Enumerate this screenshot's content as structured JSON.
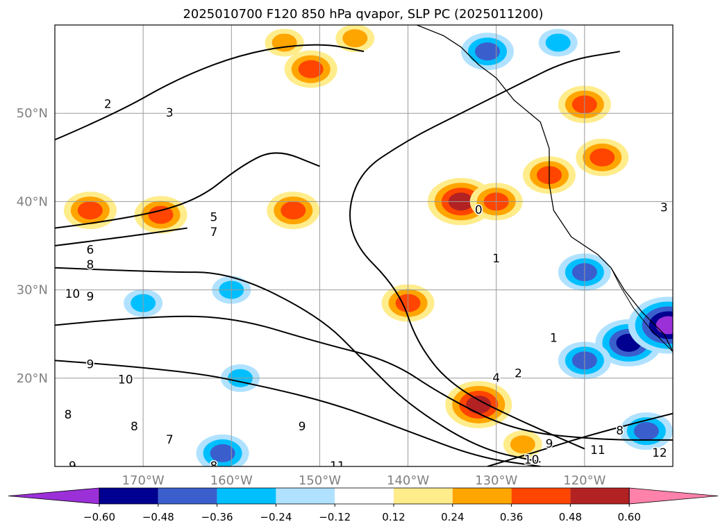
{
  "chart_data": {
    "type": "heatmap",
    "title": "2025010700 F120 850 hPa qvapor, SLP PC (2025011200)",
    "map": {
      "lon_range": [
        -180,
        -110
      ],
      "lat_range": [
        10,
        60
      ],
      "lon_ticks": [
        {
          "value": -170,
          "label": "170°W"
        },
        {
          "value": -160,
          "label": "160°W"
        },
        {
          "value": -150,
          "label": "150°W"
        },
        {
          "value": -140,
          "label": "140°W"
        },
        {
          "value": -130,
          "label": "130°W"
        },
        {
          "value": -120,
          "label": "120°W"
        }
      ],
      "lat_ticks": [
        {
          "value": 50,
          "label": "50°N"
        },
        {
          "value": 40,
          "label": "40°N"
        },
        {
          "value": 30,
          "label": "30°N"
        },
        {
          "value": 20,
          "label": "20°N"
        }
      ],
      "grid": true
    },
    "colorbar": {
      "levels": [
        -0.72,
        -0.6,
        -0.48,
        -0.36,
        -0.24,
        -0.12,
        0.12,
        0.24,
        0.36,
        0.48,
        0.6,
        0.72
      ],
      "tick_labels": [
        "−0.60",
        "−0.48",
        "−0.36",
        "−0.24",
        "−0.12",
        "0.12",
        "0.24",
        "0.36",
        "0.48",
        "0.60"
      ],
      "colors": [
        "#9b30d9",
        "#000090",
        "#3a5fcd",
        "#00bfff",
        "#b0e2ff",
        "#ffffff",
        "#ffec8b",
        "#ffa500",
        "#ff4500",
        "#b22222",
        "#ff82ab"
      ],
      "extend": "both"
    },
    "anomaly_regions": [
      {
        "lon": -176,
        "lat": 39,
        "value": 0.4
      },
      {
        "lon": -168,
        "lat": 38.5,
        "value": 0.36
      },
      {
        "lon": -151,
        "lat": 55,
        "value": 0.45
      },
      {
        "lon": -146,
        "lat": 58.5,
        "value": 0.3
      },
      {
        "lon": -154,
        "lat": 58,
        "value": 0.26
      },
      {
        "lon": -153,
        "lat": 39,
        "value": 0.42
      },
      {
        "lon": -134,
        "lat": 40,
        "value": 0.5
      },
      {
        "lon": -130,
        "lat": 40,
        "value": 0.38
      },
      {
        "lon": -124,
        "lat": 43,
        "value": 0.4
      },
      {
        "lon": -120,
        "lat": 51,
        "value": 0.38
      },
      {
        "lon": -118,
        "lat": 45,
        "value": 0.4
      },
      {
        "lon": -140,
        "lat": 28.5,
        "value": 0.42
      },
      {
        "lon": -132,
        "lat": 17,
        "value": 0.52
      },
      {
        "lon": -127,
        "lat": 12.5,
        "value": 0.3
      },
      {
        "lon": -170,
        "lat": 28.5,
        "value": -0.3
      },
      {
        "lon": -160,
        "lat": 30,
        "value": -0.32
      },
      {
        "lon": -159,
        "lat": 20,
        "value": -0.32
      },
      {
        "lon": -161,
        "lat": 11.5,
        "value": -0.36
      },
      {
        "lon": -131,
        "lat": 57,
        "value": -0.4
      },
      {
        "lon": -123,
        "lat": 58,
        "value": -0.28
      },
      {
        "lon": -120,
        "lat": 32,
        "value": -0.36
      },
      {
        "lon": -115,
        "lat": 24,
        "value": -0.5
      },
      {
        "lon": -120,
        "lat": 22,
        "value": -0.4
      },
      {
        "lon": -110.5,
        "lat": 26,
        "value": -0.7
      },
      {
        "lon": -113,
        "lat": 14,
        "value": -0.36
      }
    ],
    "slp_contours": [
      {
        "level": 1,
        "points": [
          [
            -120,
            12
          ],
          [
            -127,
            15
          ],
          [
            -135,
            19
          ],
          [
            -139,
            24
          ],
          [
            -141,
            30
          ],
          [
            -147,
            36
          ],
          [
            -146,
            43
          ],
          [
            -140,
            47
          ],
          [
            -134,
            50
          ],
          [
            -128,
            53
          ],
          [
            -122,
            56
          ],
          [
            -116,
            57
          ]
        ]
      },
      {
        "level": 3,
        "points": [
          [
            -180,
            47
          ],
          [
            -173,
            50
          ],
          [
            -166,
            54
          ],
          [
            -158,
            57
          ],
          [
            -150,
            58
          ],
          [
            -145,
            57
          ]
        ]
      },
      {
        "level": 5,
        "points": [
          [
            -180,
            37
          ],
          [
            -172,
            38
          ],
          [
            -164,
            40
          ],
          [
            -159,
            44
          ],
          [
            -155,
            46
          ],
          [
            -150,
            44
          ]
        ]
      },
      {
        "level": 7,
        "points": [
          [
            -180,
            35
          ],
          [
            -172,
            36
          ],
          [
            -165,
            37
          ]
        ]
      },
      {
        "level": 8,
        "points": [
          [
            -180,
            32.5
          ],
          [
            -168,
            32
          ],
          [
            -160,
            32
          ],
          [
            -150,
            27
          ],
          [
            -145,
            22
          ],
          [
            -140,
            17
          ],
          [
            -132,
            12
          ],
          [
            -125,
            10.5
          ]
        ]
      },
      {
        "level": 9,
        "points": [
          [
            -180,
            22
          ],
          [
            -166,
            21
          ],
          [
            -156,
            19
          ],
          [
            -148,
            17
          ],
          [
            -140,
            14
          ],
          [
            -132,
            11
          ],
          [
            -125,
            10
          ]
        ]
      },
      {
        "level": 10,
        "points": [
          [
            -180,
            26
          ],
          [
            -170,
            27
          ],
          [
            -160,
            27
          ],
          [
            -150,
            24
          ],
          [
            -142,
            22
          ],
          [
            -136,
            18
          ],
          [
            -128,
            14
          ],
          [
            -118,
            13
          ],
          [
            -110,
            13
          ]
        ]
      },
      {
        "level": 11,
        "points": [
          [
            -110,
            16
          ],
          [
            -118,
            14
          ],
          [
            -126,
            11.5
          ],
          [
            -131,
            10
          ]
        ]
      }
    ],
    "contour_labels": [
      {
        "lon": -174,
        "lat": 51,
        "text": "2"
      },
      {
        "lon": -167,
        "lat": 50,
        "text": "3"
      },
      {
        "lon": -162,
        "lat": 38.2,
        "text": "5"
      },
      {
        "lon": -162,
        "lat": 36.5,
        "text": "7"
      },
      {
        "lon": -176,
        "lat": 34.5,
        "text": "6"
      },
      {
        "lon": -176,
        "lat": 32.8,
        "text": "8"
      },
      {
        "lon": -178,
        "lat": 29.5,
        "text": "10"
      },
      {
        "lon": -176,
        "lat": 29.2,
        "text": "9"
      },
      {
        "lon": -176,
        "lat": 21.5,
        "text": "9"
      },
      {
        "lon": -172,
        "lat": 19.8,
        "text": "10"
      },
      {
        "lon": -178.5,
        "lat": 15.8,
        "text": "8"
      },
      {
        "lon": -171,
        "lat": 14.5,
        "text": "8"
      },
      {
        "lon": -167,
        "lat": 13,
        "text": "7"
      },
      {
        "lon": -152,
        "lat": 14.5,
        "text": "9"
      },
      {
        "lon": -148,
        "lat": 10,
        "text": "11"
      },
      {
        "lon": -178,
        "lat": 10,
        "text": "9"
      },
      {
        "lon": -162,
        "lat": 10,
        "text": "8"
      },
      {
        "lon": -132,
        "lat": 39,
        "text": "0"
      },
      {
        "lon": -130,
        "lat": 33.5,
        "text": "1"
      },
      {
        "lon": -123.5,
        "lat": 24.5,
        "text": "1"
      },
      {
        "lon": -127.5,
        "lat": 20.5,
        "text": "2"
      },
      {
        "lon": -130,
        "lat": 20,
        "text": "4"
      },
      {
        "lon": -124,
        "lat": 12.5,
        "text": "9"
      },
      {
        "lon": -126,
        "lat": 10.7,
        "text": "10"
      },
      {
        "lon": -118.5,
        "lat": 11.8,
        "text": "11"
      },
      {
        "lon": -111.5,
        "lat": 11.5,
        "text": "12"
      },
      {
        "lon": -116,
        "lat": 14,
        "text": "8"
      },
      {
        "lon": -111,
        "lat": 39.3,
        "text": "3"
      }
    ]
  }
}
